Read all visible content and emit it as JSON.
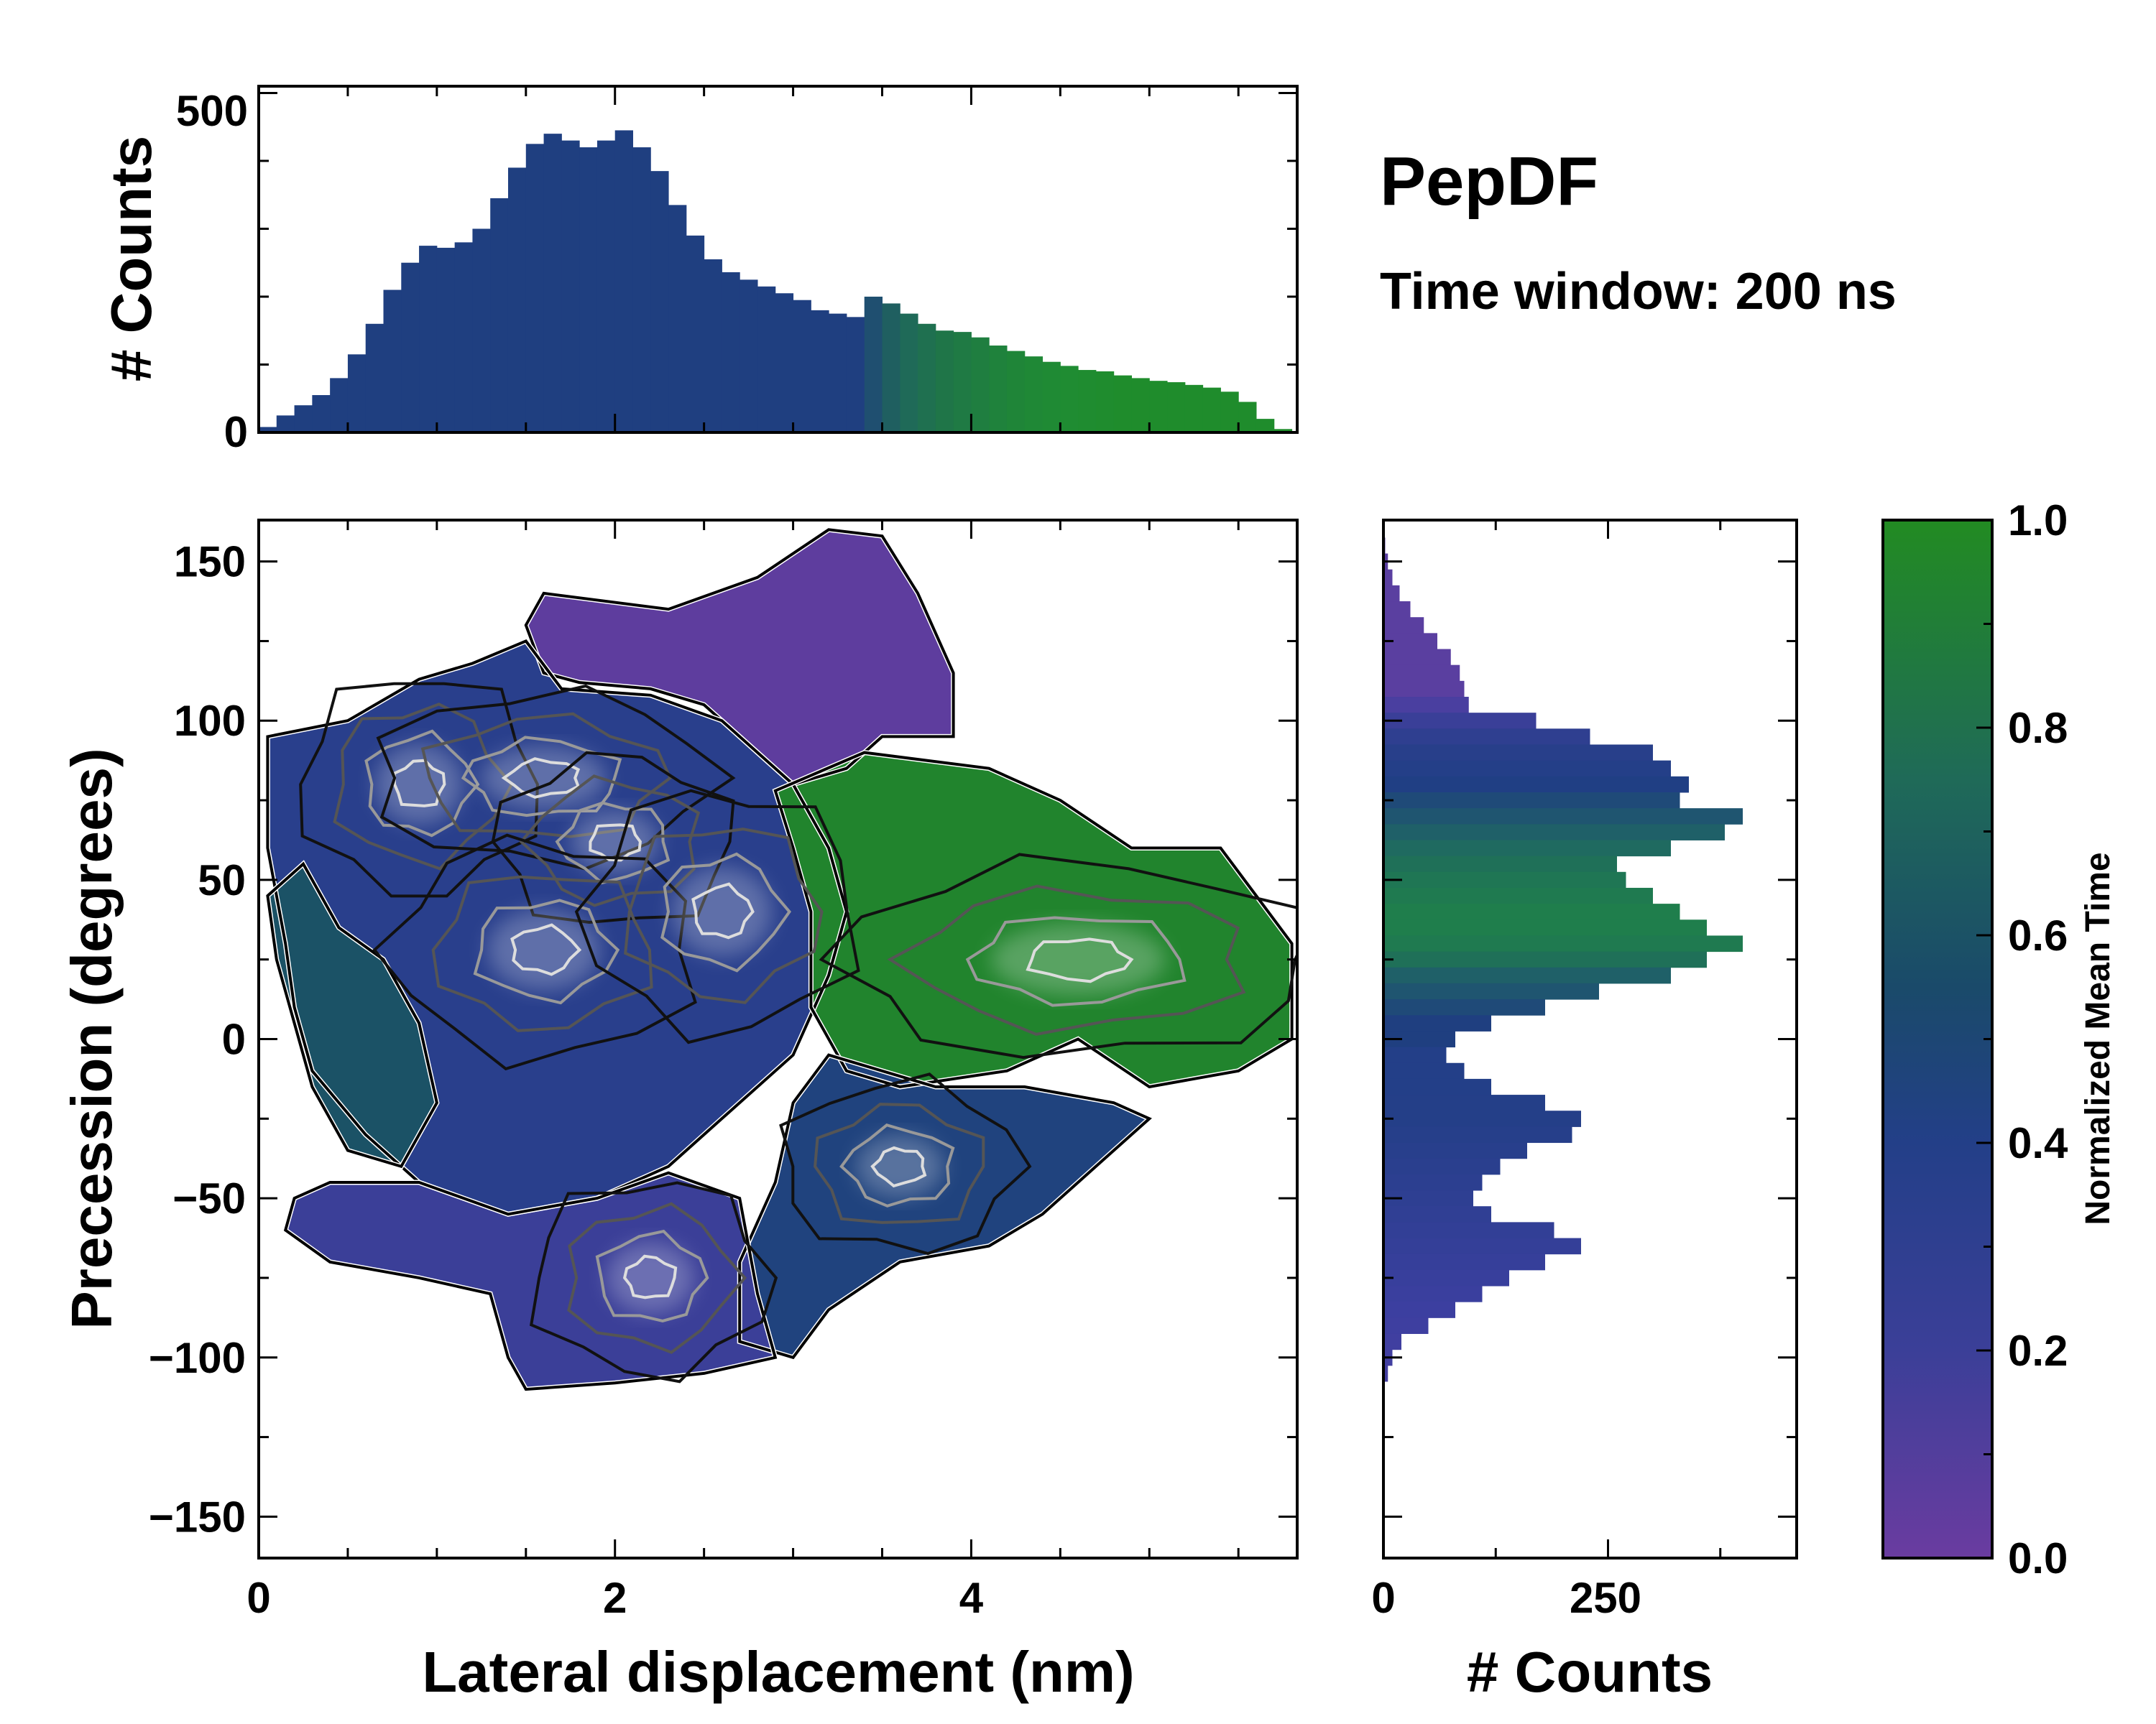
{
  "chart_data": [
    {
      "id": "top_histogram",
      "type": "bar",
      "title": "",
      "xlabel": "",
      "ylabel": "# Counts",
      "xlim": [
        0,
        5.83
      ],
      "ylim": [
        0,
        510
      ],
      "yticks": [
        "0",
        "500"
      ],
      "x": [
        0.05,
        0.15,
        0.25,
        0.35,
        0.45,
        0.55,
        0.65,
        0.75,
        0.85,
        0.95,
        1.05,
        1.15,
        1.25,
        1.35,
        1.45,
        1.55,
        1.65,
        1.75,
        1.85,
        1.95,
        2.05,
        2.15,
        2.25,
        2.35,
        2.45,
        2.55,
        2.65,
        2.75,
        2.85,
        2.95,
        3.05,
        3.15,
        3.25,
        3.35,
        3.45,
        3.55,
        3.65,
        3.75,
        3.85,
        3.95,
        4.05,
        4.15,
        4.25,
        4.35,
        4.45,
        4.55,
        4.65,
        4.75,
        4.85,
        4.95,
        5.05,
        5.15,
        5.25,
        5.35,
        5.45,
        5.55,
        5.65,
        5.75
      ],
      "values": [
        8,
        25,
        40,
        55,
        80,
        115,
        160,
        210,
        250,
        275,
        272,
        280,
        300,
        345,
        390,
        425,
        440,
        430,
        420,
        430,
        445,
        420,
        385,
        335,
        290,
        255,
        236,
        225,
        215,
        205,
        195,
        180,
        175,
        170,
        200,
        190,
        175,
        160,
        150,
        148,
        140,
        128,
        120,
        112,
        104,
        98,
        92,
        90,
        84,
        80,
        76,
        74,
        70,
        66,
        60,
        45,
        20,
        5
      ],
      "colors": [
        "#1f3f80",
        "#1f3f80",
        "#1f3f80",
        "#1f3f80",
        "#1f3f80",
        "#1f3f80",
        "#1f3f80",
        "#1f3f80",
        "#1f3f80",
        "#1f3f80",
        "#1f3f80",
        "#1f3f80",
        "#1f3f80",
        "#1f3f80",
        "#1f3f80",
        "#1f3f80",
        "#1f3f80",
        "#1f3f80",
        "#1f3f80",
        "#1f3f80",
        "#1f3f80",
        "#1f3f80",
        "#1f3f80",
        "#1f3f80",
        "#1f3f80",
        "#1f3f80",
        "#1f3f80",
        "#1f3f80",
        "#1f3f80",
        "#1f3f80",
        "#1f3f80",
        "#1f3f80",
        "#1f3f80",
        "#1f3f80",
        "#1f4f70",
        "#1f5f60",
        "#1f6a58",
        "#1f7050",
        "#1f7548",
        "#1f7a44",
        "#1f7e40",
        "#1f823c",
        "#1f8538",
        "#1f8836",
        "#1f8a34",
        "#1f8c32",
        "#1f8c30",
        "#1f8c2e",
        "#1f8c2c",
        "#1f8c2c",
        "#1f8c2c",
        "#1f8c2c",
        "#1f8c2c",
        "#1f8c2c",
        "#1f8c2c",
        "#1f8c2c",
        "#1f8c2c",
        "#1f8c2c"
      ]
    },
    {
      "id": "joint_heatmap",
      "type": "heatmap",
      "title": "",
      "xlabel": "Lateral displacement (nm)",
      "ylabel": "Precession (degrees)",
      "xlim": [
        0,
        5.83
      ],
      "ylim": [
        -163,
        163
      ],
      "xticks": [
        "0",
        "2",
        "4"
      ],
      "yticks": [
        "150",
        "100",
        "50",
        "0",
        "−50",
        "−100",
        "−150"
      ],
      "colorbar_label": "Normalized Mean Time",
      "regions": [
        {
          "name": "region-top-purple",
          "value": 0.05,
          "polygon": [
            [
              1.6,
              140
            ],
            [
              2.3,
              135
            ],
            [
              2.8,
              145
            ],
            [
              3.2,
              160
            ],
            [
              3.5,
              158
            ],
            [
              3.7,
              140
            ],
            [
              3.9,
              115
            ],
            [
              3.9,
              95
            ],
            [
              3.5,
              95
            ],
            [
              3.3,
              85
            ],
            [
              3.0,
              80
            ],
            [
              2.7,
              95
            ],
            [
              2.5,
              105
            ],
            [
              2.2,
              110
            ],
            [
              1.8,
              112
            ],
            [
              1.6,
              115
            ],
            [
              1.5,
              130
            ]
          ]
        },
        {
          "name": "region-left-blue",
          "value": 0.35,
          "polygon": [
            [
              0.05,
              95
            ],
            [
              0.5,
              100
            ],
            [
              0.9,
              113
            ],
            [
              1.2,
              118
            ],
            [
              1.5,
              125
            ],
            [
              1.7,
              110
            ],
            [
              2.2,
              108
            ],
            [
              2.6,
              100
            ],
            [
              3.0,
              80
            ],
            [
              3.2,
              60
            ],
            [
              3.3,
              40
            ],
            [
              3.2,
              20
            ],
            [
              3.0,
              -5
            ],
            [
              2.6,
              -25
            ],
            [
              2.3,
              -40
            ],
            [
              1.9,
              -50
            ],
            [
              1.4,
              -55
            ],
            [
              0.9,
              -45
            ],
            [
              0.6,
              -30
            ],
            [
              0.3,
              -10
            ],
            [
              0.2,
              10
            ],
            [
              0.15,
              30
            ],
            [
              0.05,
              60
            ]
          ]
        },
        {
          "name": "region-right-green",
          "value": 0.95,
          "polygon": [
            [
              2.9,
              78
            ],
            [
              3.4,
              90
            ],
            [
              4.1,
              85
            ],
            [
              4.5,
              75
            ],
            [
              4.9,
              60
            ],
            [
              5.4,
              60
            ],
            [
              5.6,
              45
            ],
            [
              5.8,
              30
            ],
            [
              5.8,
              0
            ],
            [
              5.5,
              -10
            ],
            [
              5.0,
              -15
            ],
            [
              4.6,
              0
            ],
            [
              4.2,
              -10
            ],
            [
              3.6,
              -15
            ],
            [
              3.3,
              -10
            ],
            [
              3.1,
              10
            ],
            [
              3.1,
              40
            ],
            [
              3.0,
              60
            ]
          ]
        },
        {
          "name": "region-bottom-mid-blue",
          "value": 0.45,
          "polygon": [
            [
              3.2,
              -5
            ],
            [
              3.8,
              -15
            ],
            [
              4.3,
              -15
            ],
            [
              4.8,
              -20
            ],
            [
              5.0,
              -25
            ],
            [
              4.7,
              -40
            ],
            [
              4.4,
              -55
            ],
            [
              4.1,
              -65
            ],
            [
              3.6,
              -70
            ],
            [
              3.2,
              -85
            ],
            [
              3.0,
              -100
            ],
            [
              2.7,
              -95
            ],
            [
              2.7,
              -70
            ],
            [
              2.9,
              -45
            ],
            [
              3.0,
              -20
            ]
          ]
        },
        {
          "name": "region-bottom-purple",
          "value": 0.2,
          "polygon": [
            [
              0.4,
              -45
            ],
            [
              0.9,
              -45
            ],
            [
              1.4,
              -55
            ],
            [
              1.9,
              -50
            ],
            [
              2.3,
              -42
            ],
            [
              2.7,
              -50
            ],
            [
              2.8,
              -80
            ],
            [
              2.9,
              -100
            ],
            [
              2.5,
              -105
            ],
            [
              2.0,
              -108
            ],
            [
              1.5,
              -110
            ],
            [
              1.4,
              -100
            ],
            [
              1.3,
              -80
            ],
            [
              0.9,
              -75
            ],
            [
              0.4,
              -70
            ],
            [
              0.15,
              -60
            ],
            [
              0.2,
              -50
            ]
          ]
        },
        {
          "name": "region-left-teal",
          "value": 0.6,
          "polygon": [
            [
              0.05,
              45
            ],
            [
              0.25,
              55
            ],
            [
              0.45,
              35
            ],
            [
              0.7,
              25
            ],
            [
              0.9,
              5
            ],
            [
              1.0,
              -20
            ],
            [
              0.8,
              -40
            ],
            [
              0.5,
              -35
            ],
            [
              0.3,
              -15
            ],
            [
              0.2,
              5
            ],
            [
              0.1,
              25
            ]
          ]
        }
      ],
      "contour_ring_levels": [
        {
          "level": "outer",
          "stroke": "#111111"
        },
        {
          "level": "mid",
          "stroke": "#555555"
        },
        {
          "level": "inner",
          "stroke": "#999999"
        },
        {
          "level": "peak",
          "stroke": "#dddddd"
        }
      ],
      "peaks": [
        {
          "x": 0.9,
          "y": 80,
          "rx": 0.35,
          "ry": 18
        },
        {
          "x": 1.6,
          "y": 82,
          "rx": 0.5,
          "ry": 14
        },
        {
          "x": 2.0,
          "y": 62,
          "rx": 0.35,
          "ry": 14
        },
        {
          "x": 1.6,
          "y": 28,
          "rx": 0.45,
          "ry": 18
        },
        {
          "x": 2.2,
          "y": -75,
          "rx": 0.35,
          "ry": 16
        },
        {
          "x": 3.6,
          "y": -40,
          "rx": 0.35,
          "ry": 14
        },
        {
          "x": 4.6,
          "y": 25,
          "rx": 0.7,
          "ry": 16
        },
        {
          "x": 2.6,
          "y": 40,
          "rx": 0.4,
          "ry": 20
        }
      ]
    },
    {
      "id": "right_histogram",
      "type": "bar",
      "orientation": "horizontal",
      "title": "",
      "xlabel": "# Counts",
      "ylabel": "",
      "xlim": [
        0,
        460
      ],
      "ylim": [
        -163,
        163
      ],
      "xticks": [
        "0",
        "250"
      ],
      "y": [
        155,
        150,
        145,
        140,
        135,
        130,
        125,
        120,
        115,
        110,
        105,
        100,
        95,
        90,
        85,
        80,
        75,
        70,
        65,
        60,
        55,
        50,
        45,
        40,
        35,
        30,
        25,
        20,
        15,
        10,
        5,
        0,
        -5,
        -10,
        -15,
        -20,
        -25,
        -30,
        -35,
        -40,
        -45,
        -50,
        -55,
        -60,
        -65,
        -70,
        -75,
        -80,
        -85,
        -90,
        -95,
        -100,
        -105
      ],
      "values": [
        2,
        5,
        10,
        18,
        30,
        45,
        60,
        75,
        85,
        90,
        95,
        170,
        230,
        300,
        320,
        340,
        330,
        400,
        380,
        320,
        260,
        270,
        300,
        330,
        360,
        400,
        360,
        320,
        240,
        180,
        120,
        80,
        70,
        90,
        120,
        180,
        220,
        210,
        160,
        130,
        110,
        100,
        120,
        190,
        220,
        180,
        140,
        110,
        80,
        50,
        20,
        10,
        5
      ],
      "colors": [
        "#5a3fa0",
        "#5a3fa0",
        "#5a3fa0",
        "#5a3fa0",
        "#5a3fa0",
        "#5a3fa0",
        "#5a3fa0",
        "#5a3fa0",
        "#5a3fa0",
        "#5a3fa0",
        "#4a3fa0",
        "#3a3f98",
        "#2f3f90",
        "#283f8a",
        "#243f88",
        "#203f84",
        "#1f4a78",
        "#1f5570",
        "#1f6068",
        "#1f6a60",
        "#1f7058",
        "#1f7654",
        "#1f7a50",
        "#1f7e4c",
        "#1f7e4c",
        "#1f7a50",
        "#1f7058",
        "#1f6068",
        "#1f5570",
        "#1f4a78",
        "#1f3f80",
        "#1f3f80",
        "#233f88",
        "#233f88",
        "#233f88",
        "#243f88",
        "#243f88",
        "#263f8a",
        "#283f8c",
        "#2a3f8e",
        "#2c3f90",
        "#2e3f92",
        "#303f94",
        "#323f96",
        "#343f98",
        "#363f9a",
        "#383f9c",
        "#3a3f9e",
        "#3c3fa0",
        "#3e3fa0",
        "#403fa0",
        "#423fa0",
        "#443fa0"
      ]
    }
  ],
  "colorbar": {
    "label": "Normalized Mean Time",
    "ticks": [
      "0.0",
      "0.2",
      "0.4",
      "0.6",
      "0.8",
      "1.0"
    ],
    "stops": [
      "#6a3ca0",
      "#3b3f98",
      "#233f88",
      "#1a4a6a",
      "#1f6a58",
      "#228b22"
    ]
  },
  "text": {
    "title": "PepDF",
    "subtitle": "Time window: 200 ns"
  }
}
